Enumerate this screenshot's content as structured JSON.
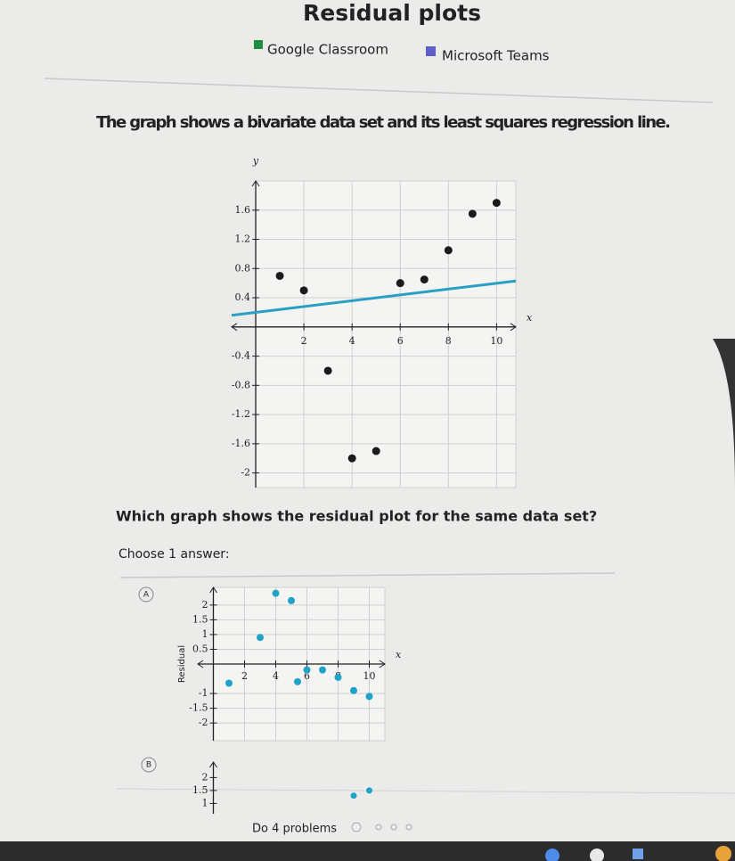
{
  "header": {
    "title": "Residual plots",
    "links": [
      "Google Classroom",
      "Microsoft Teams"
    ]
  },
  "question": {
    "prompt": "The graph shows a bivariate data set and its least squares regression line.",
    "question": "Which graph shows the residual plot for the same data set?",
    "instruction": "Choose 1 answer:"
  },
  "choices": [
    "A",
    "B"
  ],
  "footer": {
    "progress": "Do 4 problems"
  },
  "chart_data": [
    {
      "type": "scatter",
      "x_label": "x",
      "y_label": "y",
      "xlim": [
        -1,
        10.8
      ],
      "ylim": [
        -2.2,
        2
      ],
      "xticks": [
        2,
        4,
        6,
        8,
        10
      ],
      "yticks": [
        -2,
        -1.6,
        -1.2,
        -0.8,
        -0.4,
        0.4,
        0.8,
        1.2,
        1.6
      ],
      "grid": true,
      "series": [
        {
          "color": "#1b1b1b",
          "mode": "points",
          "x": [
            1,
            2,
            3,
            4,
            5,
            6,
            7,
            8,
            9,
            10
          ],
          "values": [
            0.7,
            0.5,
            -0.6,
            -1.8,
            -1.7,
            0.6,
            0.65,
            1.05,
            1.55,
            1.7
          ]
        },
        {
          "color": "#2a9fc4",
          "mode": "line",
          "x": [
            -1,
            10.8
          ],
          "values": [
            0.16,
            0.63
          ]
        }
      ]
    },
    {
      "type": "scatter",
      "x_label": "x",
      "y_label": "Residual",
      "xlim": [
        -1,
        11
      ],
      "ylim": [
        -2.6,
        2.6
      ],
      "xticks": [
        2,
        4,
        6,
        8,
        10
      ],
      "yticks": [
        -2,
        -1.5,
        -1,
        0.5,
        1,
        1.5,
        2
      ],
      "grid": true,
      "series": [
        {
          "color": "#1fa3c9",
          "mode": "points",
          "x": [
            1,
            3,
            4,
            5,
            5.4,
            6,
            7,
            8,
            9,
            10
          ],
          "values": [
            -0.65,
            0.9,
            2.4,
            2.15,
            -0.6,
            -0.2,
            -0.2,
            -0.45,
            -0.9,
            -1.1
          ]
        }
      ]
    },
    {
      "type": "scatter",
      "xlim": [
        -1,
        11
      ],
      "ylim": [
        0.6,
        2.6
      ],
      "yticks": [
        1,
        1.5,
        2
      ],
      "grid": false,
      "series": [
        {
          "color": "#1fa3c9",
          "mode": "points",
          "x": [
            9,
            10
          ],
          "values": [
            1.3,
            1.5
          ]
        }
      ]
    }
  ]
}
